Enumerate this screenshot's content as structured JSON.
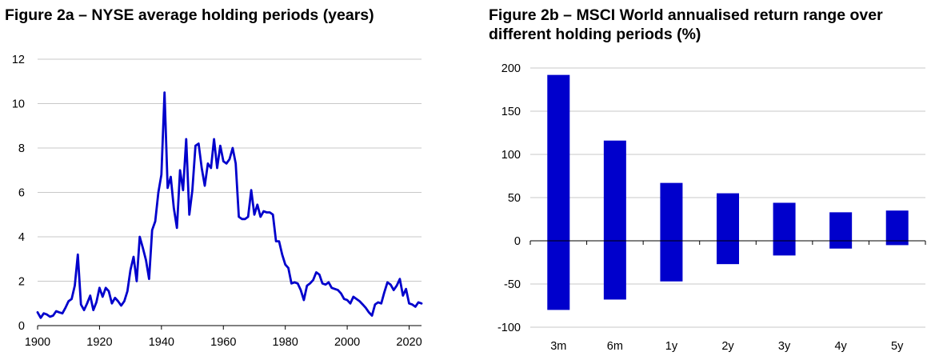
{
  "charts": [
    {
      "type": "line",
      "title": "Figure 2a – NYSE average holding periods (years)",
      "xlabel": "",
      "ylabel": "",
      "xlim": [
        1900,
        2024
      ],
      "ylim": [
        0,
        12
      ],
      "x_ticks": [
        1900,
        1920,
        1940,
        1960,
        1980,
        2000,
        2020
      ],
      "y_ticks": [
        0,
        2,
        4,
        6,
        8,
        10,
        12
      ],
      "grid": "horizontal",
      "color": "#0000cc",
      "x": [
        1900,
        1901,
        1902,
        1903,
        1904,
        1905,
        1906,
        1907,
        1908,
        1909,
        1910,
        1911,
        1912,
        1913,
        1914,
        1915,
        1916,
        1917,
        1918,
        1919,
        1920,
        1921,
        1922,
        1923,
        1924,
        1925,
        1926,
        1927,
        1928,
        1929,
        1930,
        1931,
        1932,
        1933,
        1934,
        1935,
        1936,
        1937,
        1938,
        1939,
        1940,
        1941,
        1942,
        1943,
        1944,
        1945,
        1946,
        1947,
        1948,
        1949,
        1950,
        1951,
        1952,
        1953,
        1954,
        1955,
        1956,
        1957,
        1958,
        1959,
        1960,
        1961,
        1962,
        1963,
        1964,
        1965,
        1966,
        1967,
        1968,
        1969,
        1970,
        1971,
        1972,
        1973,
        1974,
        1975,
        1976,
        1977,
        1978,
        1979,
        1980,
        1981,
        1982,
        1983,
        1984,
        1985,
        1986,
        1987,
        1988,
        1989,
        1990,
        1991,
        1992,
        1993,
        1994,
        1995,
        1996,
        1997,
        1998,
        1999,
        2000,
        2001,
        2002,
        2003,
        2004,
        2005,
        2006,
        2007,
        2008,
        2009,
        2010,
        2011,
        2012,
        2013,
        2014,
        2015,
        2016,
        2017,
        2018,
        2019,
        2020,
        2021,
        2022,
        2023,
        2024
      ],
      "values": [
        0.6,
        0.35,
        0.55,
        0.5,
        0.4,
        0.45,
        0.65,
        0.6,
        0.55,
        0.8,
        1.1,
        1.2,
        1.8,
        3.2,
        0.95,
        0.7,
        1.0,
        1.35,
        0.7,
        1.05,
        1.7,
        1.3,
        1.7,
        1.55,
        1.0,
        1.25,
        1.1,
        0.9,
        1.1,
        1.55,
        2.5,
        3.1,
        2.0,
        4.0,
        3.5,
        2.95,
        2.1,
        4.3,
        4.7,
        6.0,
        6.8,
        10.5,
        6.2,
        6.7,
        5.3,
        4.4,
        7.0,
        6.1,
        8.4,
        5.0,
        6.1,
        8.1,
        8.2,
        7.1,
        6.3,
        7.3,
        7.1,
        8.4,
        7.1,
        8.1,
        7.4,
        7.3,
        7.5,
        8.0,
        7.3,
        4.9,
        4.8,
        4.8,
        4.9,
        6.1,
        5.0,
        5.45,
        4.9,
        5.15,
        5.1,
        5.1,
        5.0,
        3.8,
        3.8,
        3.2,
        2.75,
        2.6,
        1.9,
        1.95,
        1.9,
        1.6,
        1.15,
        1.8,
        1.9,
        2.05,
        2.4,
        2.3,
        1.9,
        1.85,
        1.95,
        1.7,
        1.65,
        1.6,
        1.45,
        1.2,
        1.15,
        1.0,
        1.3,
        1.2,
        1.1,
        0.95,
        0.8,
        0.6,
        0.45,
        0.95,
        1.05,
        1.0,
        1.5,
        1.95,
        1.85,
        1.6,
        1.8,
        2.1,
        1.35,
        1.65,
        1.0,
        0.95,
        0.85,
        1.05,
        1.0
      ]
    },
    {
      "type": "bar",
      "subtype": "floating-range",
      "title": "Figure 2b – MSCI World annualised return range over different holding periods (%)",
      "xlabel": "",
      "ylabel": "",
      "ylim": [
        -100,
        200
      ],
      "y_ticks": [
        -100,
        -50,
        0,
        50,
        100,
        150,
        200
      ],
      "grid": "horizontal",
      "color": "#0000cc",
      "categories": [
        "3m",
        "6m",
        "1y",
        "2y",
        "3y",
        "4y",
        "5y"
      ],
      "min": [
        -80,
        -68,
        -47,
        -27,
        -17,
        -9,
        -5
      ],
      "max": [
        192,
        116,
        67,
        55,
        44,
        33,
        35
      ]
    }
  ]
}
